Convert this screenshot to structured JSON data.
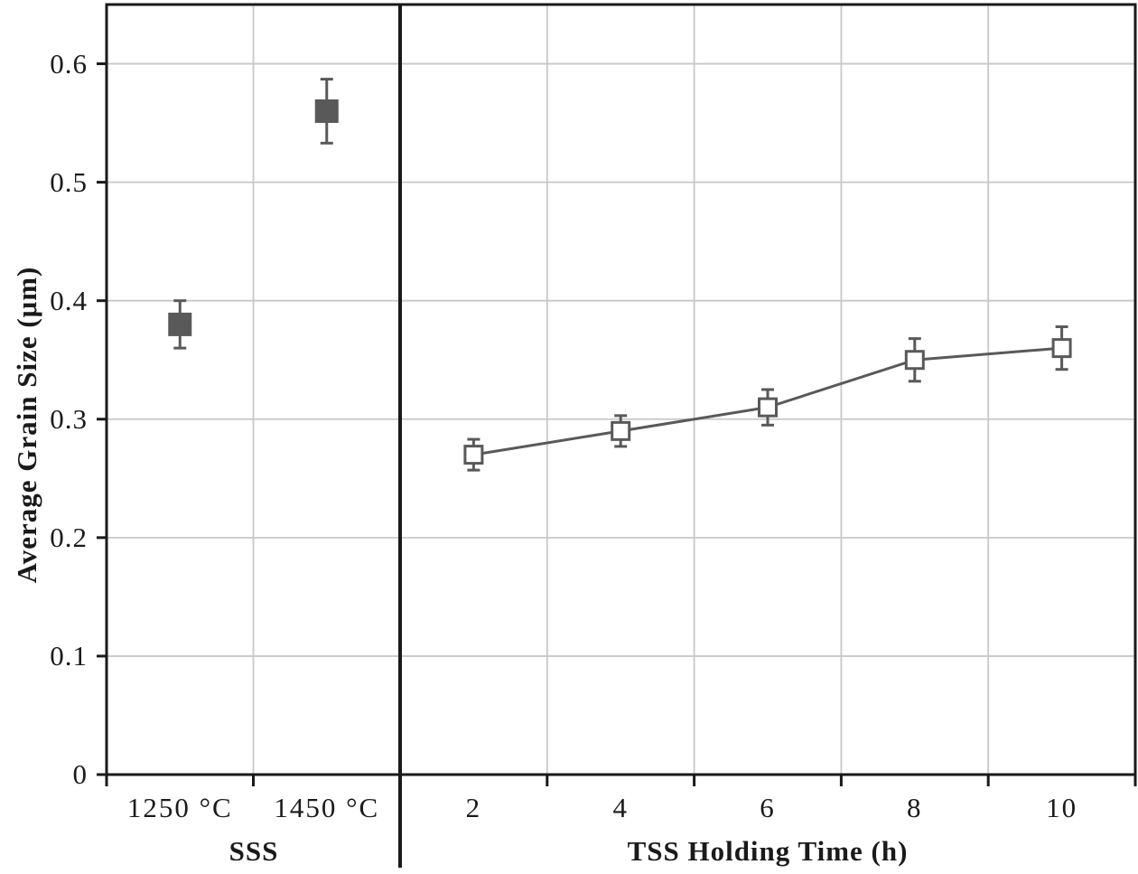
{
  "chart_data": {
    "type": "scatter",
    "title": "",
    "ylabel": "Average Grain Size (μm)",
    "ylim": [
      0,
      0.65
    ],
    "yticks": [
      0,
      0.1,
      0.2,
      0.3,
      0.4,
      0.5,
      0.6
    ],
    "ytick_labels": [
      "0",
      "0.1",
      "0.2",
      "0.3",
      "0.4",
      "0.5",
      "0.6"
    ],
    "grid": true,
    "legend_position": "none",
    "panels": [
      {
        "xlabel": "SSS",
        "categories": [
          "1250 °C",
          "1450 °C"
        ],
        "series": [
          {
            "name": "SSS",
            "marker": "filled-square",
            "connected": false,
            "values": [
              0.38,
              0.56
            ],
            "errors": [
              0.02,
              0.027
            ]
          }
        ]
      },
      {
        "xlabel": "TSS Holding Time (h)",
        "categories": [
          "2",
          "4",
          "6",
          "8",
          "10"
        ],
        "series": [
          {
            "name": "TSS",
            "marker": "open-square",
            "connected": true,
            "values": [
              0.27,
              0.29,
              0.31,
              0.35,
              0.36
            ],
            "errors": [
              0.013,
              0.013,
              0.015,
              0.018,
              0.018
            ]
          }
        ]
      }
    ],
    "colors": {
      "series": "#595959",
      "grid": "#c8c8c8",
      "axis": "#1a1a1a",
      "marker_fill_open": "#ffffff",
      "background": "#ffffff"
    }
  }
}
